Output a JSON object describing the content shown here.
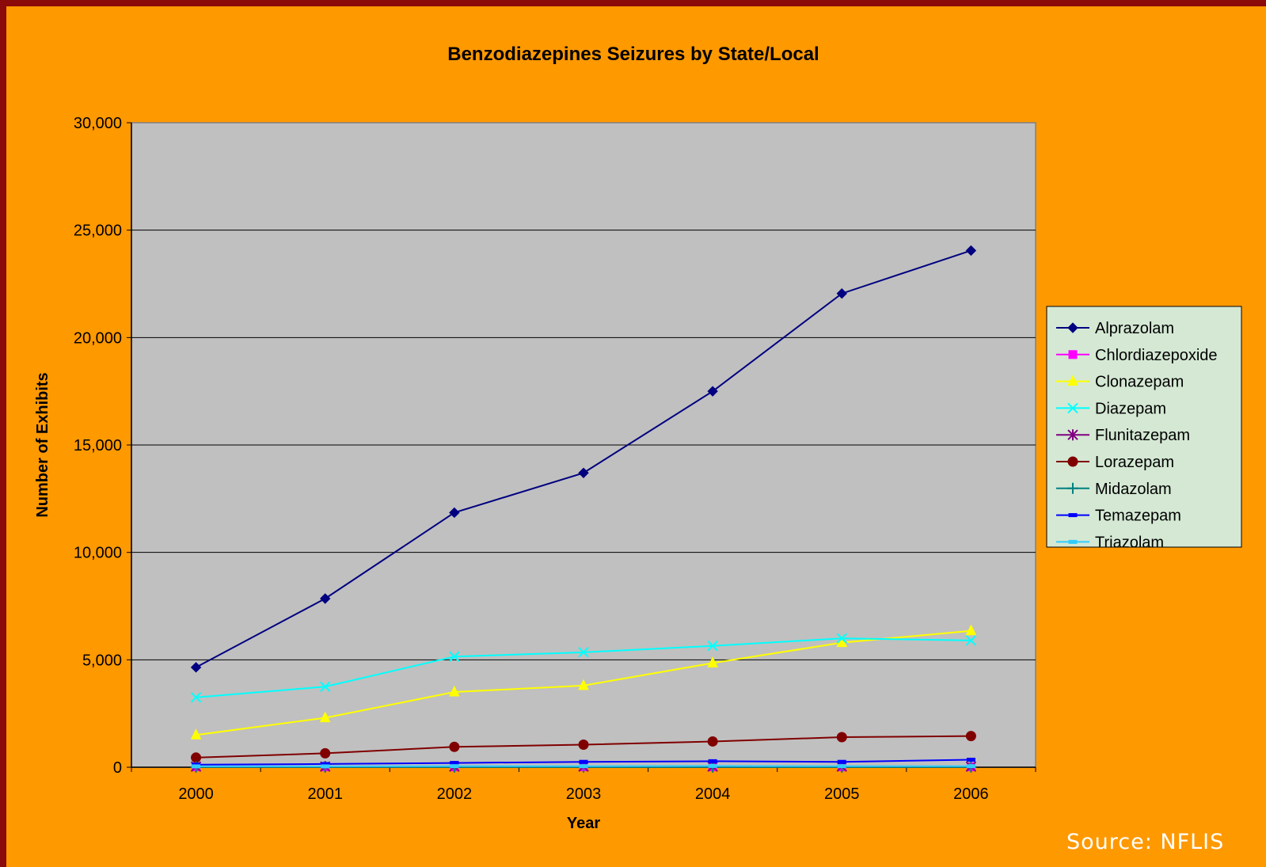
{
  "chart_data": {
    "type": "line",
    "title": "Benzodiazepines Seizures by State/Local",
    "xlabel": "Year",
    "ylabel": "Number of Exhibits",
    "categories": [
      "2000",
      "2001",
      "2002",
      "2003",
      "2004",
      "2005",
      "2006"
    ],
    "ylim": [
      0,
      30000
    ],
    "yticks": [
      0,
      5000,
      10000,
      15000,
      20000,
      25000,
      30000
    ],
    "ytick_labels": [
      "0",
      "5,000",
      "10,000",
      "15,000",
      "20,000",
      "25,000",
      "30,000"
    ],
    "grid": "horizontal",
    "legend_position": "right",
    "series": [
      {
        "name": "Alprazolam",
        "color": "#000080",
        "marker": "diamond",
        "values": [
          4650,
          7850,
          11850,
          13700,
          17500,
          22050,
          24050
        ]
      },
      {
        "name": "Chlordiazepoxide",
        "color": "#ff00ff",
        "marker": "square",
        "values": [
          20,
          20,
          20,
          20,
          20,
          20,
          20
        ]
      },
      {
        "name": "Clonazepam",
        "color": "#ffff00",
        "marker": "triangle",
        "values": [
          1500,
          2300,
          3500,
          3800,
          4850,
          5800,
          6350
        ]
      },
      {
        "name": "Diazepam",
        "color": "#00ffff",
        "marker": "x",
        "values": [
          3250,
          3750,
          5150,
          5350,
          5650,
          6000,
          5900
        ]
      },
      {
        "name": "Flunitazepam",
        "color": "#800080",
        "marker": "asterisk",
        "values": [
          30,
          30,
          30,
          30,
          30,
          30,
          30
        ]
      },
      {
        "name": "Lorazepam",
        "color": "#800000",
        "marker": "circle",
        "values": [
          450,
          650,
          950,
          1050,
          1200,
          1400,
          1450
        ]
      },
      {
        "name": "Midazolam",
        "color": "#008080",
        "marker": "plus",
        "values": [
          10,
          10,
          10,
          10,
          10,
          10,
          10
        ]
      },
      {
        "name": "Temazepam",
        "color": "#0000ff",
        "marker": "dash",
        "values": [
          120,
          150,
          200,
          250,
          280,
          250,
          350
        ]
      },
      {
        "name": "Triazolam",
        "color": "#33ccff",
        "marker": "dash",
        "values": [
          40,
          40,
          50,
          50,
          60,
          50,
          50
        ]
      }
    ]
  },
  "source": "Source: NFLIS"
}
